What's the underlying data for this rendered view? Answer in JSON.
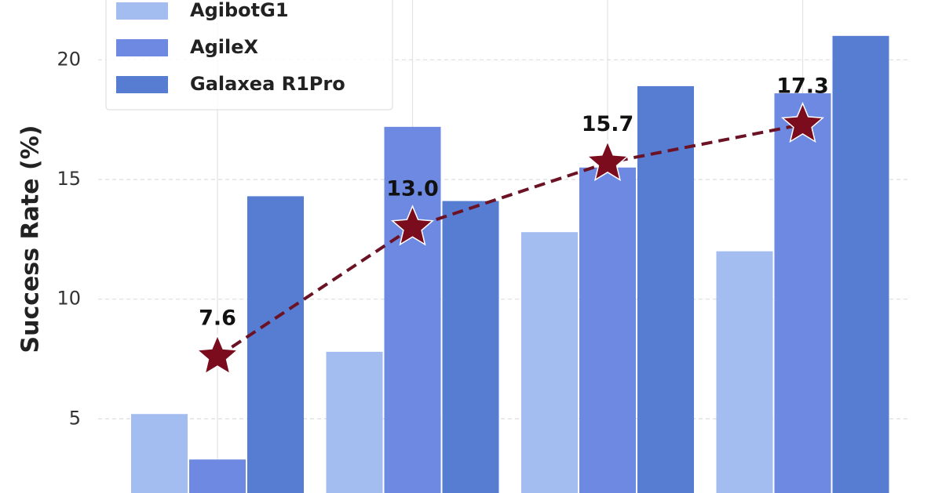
{
  "chart_data": {
    "type": "bar",
    "y_label": "Success Rate (%)",
    "categories": [
      null,
      null,
      null,
      null
    ],
    "ylim": [
      1.9,
      22.5
    ],
    "yticks": [
      5,
      10,
      15,
      20
    ],
    "grid": true,
    "legend": "upper left",
    "series": [
      {
        "name": "AgibotG1",
        "color": "#a3bdf0",
        "values": [
          5.2,
          7.8,
          12.8,
          12.0
        ]
      },
      {
        "name": "AgileX",
        "color": "#6d89e1",
        "values": [
          3.3,
          17.2,
          15.5,
          18.6
        ]
      },
      {
        "name": "Galaxea R1Pro",
        "color": "#577dd3",
        "values": [
          14.3,
          14.1,
          18.9,
          21.0
        ]
      },
      {
        "type": "line",
        "color": "#6b1224",
        "marker_color": "#7a0c1e",
        "values": [
          7.6,
          13.0,
          15.7,
          17.3
        ],
        "value_labels": [
          "7.6",
          "13.0",
          "15.7",
          "17.3"
        ]
      }
    ]
  }
}
